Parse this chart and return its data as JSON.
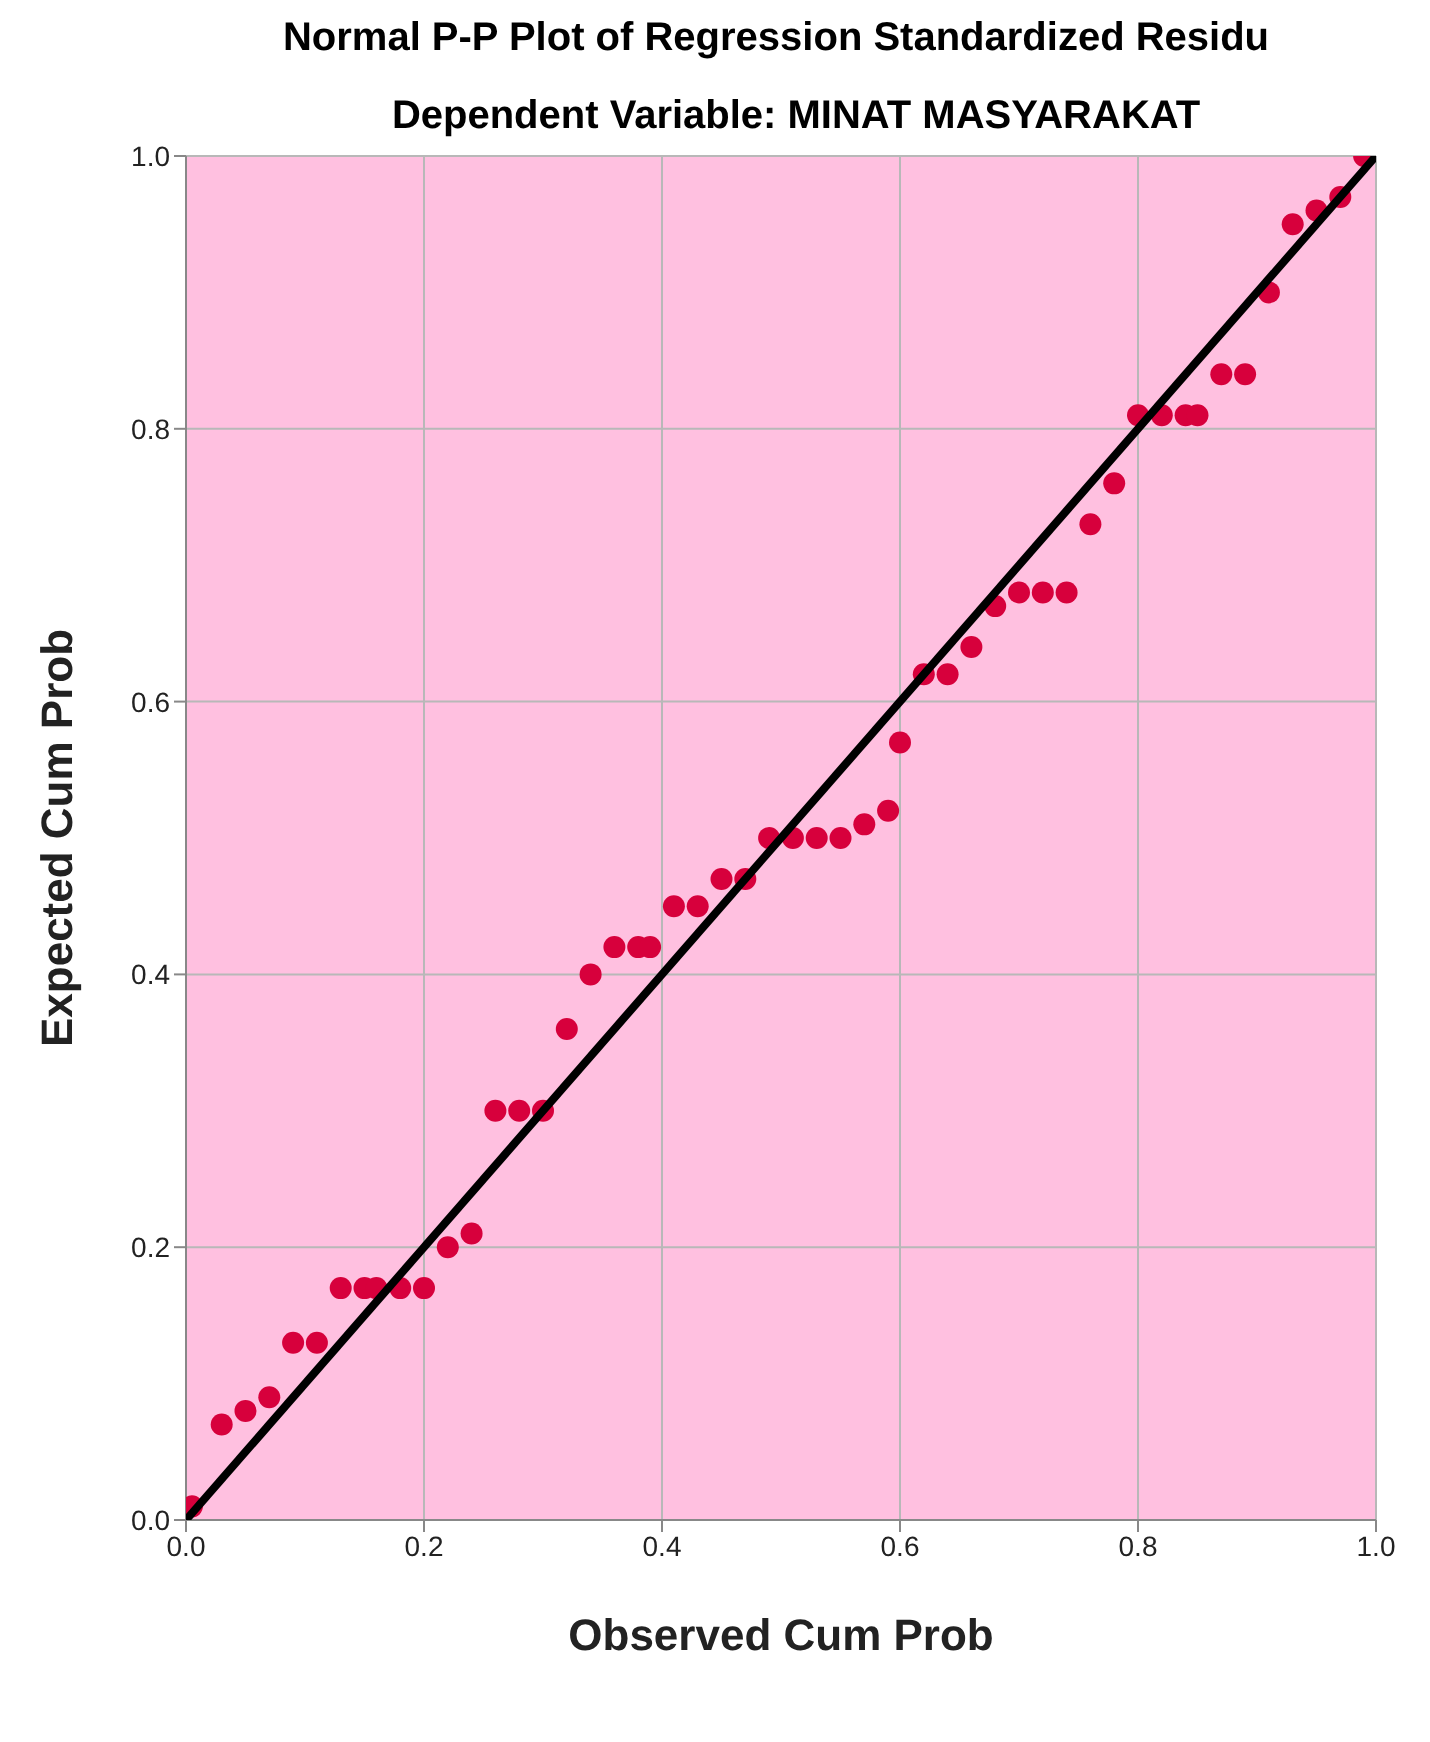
{
  "chart_data": {
    "type": "scatter",
    "title": "Normal P-P Plot of Regression Standardized Residu",
    "subtitle": "Dependent Variable: MINAT MASYARAKAT",
    "xlabel": "Observed Cum Prob",
    "ylabel": "Expected Cum Prob",
    "xlim": [
      0,
      1
    ],
    "ylim": [
      0,
      1
    ],
    "xticks": [
      {
        "value": 0,
        "label": "0.0"
      },
      0.2,
      0.4,
      0.6,
      0.8,
      {
        "value": 1,
        "label": "1.0"
      }
    ],
    "yticks": [
      {
        "value": 0,
        "label": "0.0"
      },
      0.2,
      0.4,
      0.6,
      0.8,
      {
        "value": 1,
        "label": "1.0"
      }
    ],
    "grid": true,
    "series": [
      {
        "marker": "circle",
        "color": "#d7003c",
        "x": [
          0.005,
          0.03,
          0.05,
          0.07,
          0.09,
          0.11,
          0.13,
          0.15,
          0.16,
          0.18,
          0.2,
          0.22,
          0.24,
          0.26,
          0.28,
          0.3,
          0.32,
          0.34,
          0.36,
          0.38,
          0.39,
          0.41,
          0.43,
          0.45,
          0.47,
          0.49,
          0.51,
          0.53,
          0.55,
          0.57,
          0.59,
          0.6,
          0.62,
          0.64,
          0.66,
          0.68,
          0.7,
          0.72,
          0.74,
          0.76,
          0.78,
          0.8,
          0.82,
          0.84,
          0.85,
          0.87,
          0.89,
          0.91,
          0.93,
          0.95,
          0.97,
          0.99
        ],
        "values": [
          0.01,
          0.07,
          0.08,
          0.09,
          0.13,
          0.13,
          0.17,
          0.17,
          0.17,
          0.17,
          0.17,
          0.2,
          0.21,
          0.3,
          0.3,
          0.3,
          0.36,
          0.4,
          0.42,
          0.42,
          0.42,
          0.45,
          0.45,
          0.47,
          0.47,
          0.5,
          0.5,
          0.5,
          0.5,
          0.51,
          0.52,
          0.57,
          0.62,
          0.62,
          0.64,
          0.67,
          0.68,
          0.68,
          0.68,
          0.73,
          0.76,
          0.81,
          0.81,
          0.81,
          0.81,
          0.84,
          0.84,
          0.9,
          0.95,
          0.96,
          0.97,
          1.0
        ]
      },
      {
        "type": "line",
        "color": "#000000",
        "x": [
          0,
          1
        ],
        "values": [
          0,
          1
        ]
      }
    ]
  }
}
